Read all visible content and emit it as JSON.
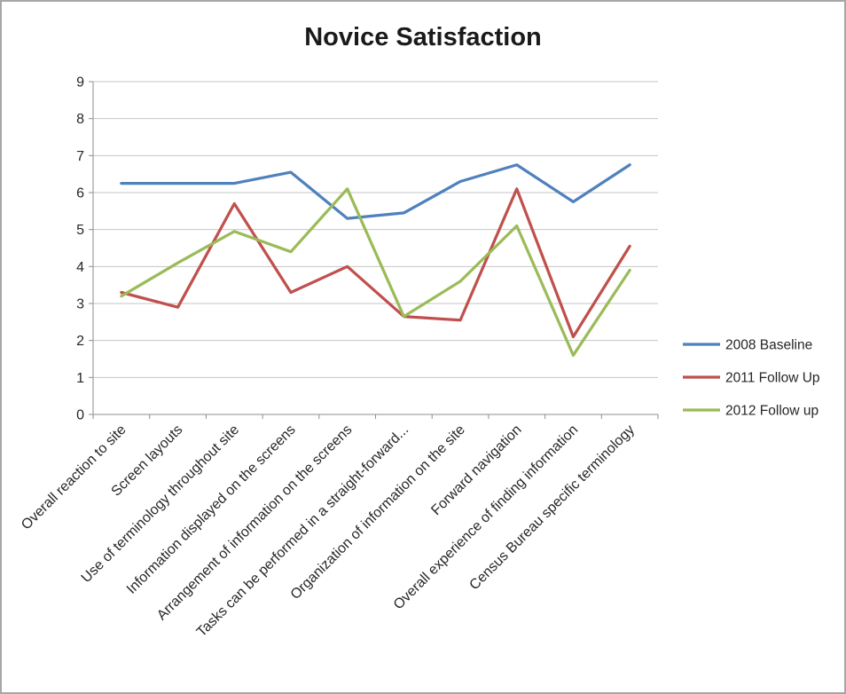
{
  "chart_data": {
    "type": "line",
    "title": "Novice Satisfaction",
    "categories": [
      "Overall reaction to site",
      "Screen layouts",
      "Use of terminology throughout site",
      "Information displayed on the screens",
      "Arrangement of information on the screens",
      "Tasks can be performed in a straight-forward...",
      "Organization of information on the site",
      "Forward navigation",
      "Overall experience of finding information",
      "Census Bureau specific terminology"
    ],
    "series": [
      {
        "name": "2008 Baseline",
        "color": "#4F81BD",
        "values": [
          6.25,
          6.25,
          6.25,
          6.55,
          5.3,
          5.45,
          6.3,
          6.75,
          5.75,
          6.75
        ]
      },
      {
        "name": "2011 Follow Up",
        "color": "#C0504D",
        "values": [
          3.3,
          2.9,
          5.7,
          3.3,
          4.0,
          2.65,
          2.55,
          6.1,
          2.1,
          4.55
        ]
      },
      {
        "name": "2012 Follow up",
        "color": "#9BBB59",
        "values": [
          3.2,
          4.1,
          4.95,
          4.4,
          6.1,
          2.65,
          3.6,
          5.1,
          1.6,
          3.9
        ]
      }
    ],
    "ylim": [
      0,
      9
    ],
    "ytick_step": 1,
    "xlabel": "",
    "ylabel": "",
    "grid": "horizontal",
    "legend_position": "right"
  }
}
